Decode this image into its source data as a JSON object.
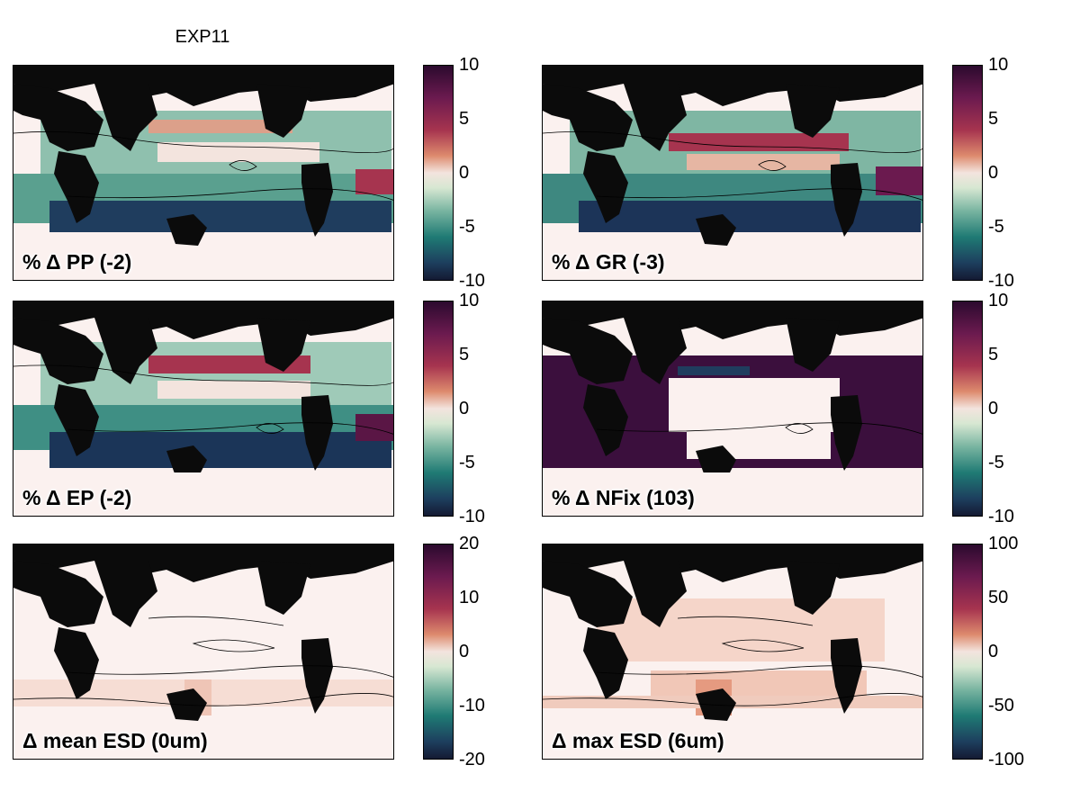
{
  "figure": {
    "title": "EXP11"
  },
  "panels": [
    {
      "label": "% Δ PP (-2)",
      "ticks": [
        "10",
        "5",
        "0",
        "-5",
        "-10"
      ]
    },
    {
      "label": "% Δ GR (-3)",
      "ticks": [
        "10",
        "5",
        "0",
        "-5",
        "-10"
      ]
    },
    {
      "label": "% Δ EP (-2)",
      "ticks": [
        "10",
        "5",
        "0",
        "-5",
        "-10"
      ]
    },
    {
      "label": "% Δ NFix (103)",
      "ticks": [
        "10",
        "5",
        "0",
        "-5",
        "-10"
      ]
    },
    {
      "label": "Δ mean ESD (0um)",
      "ticks": [
        "20",
        "10",
        "0",
        "-10",
        "-20"
      ]
    },
    {
      "label": "Δ max ESD (6um)",
      "ticks": [
        "100",
        "50",
        "0",
        "-50",
        "-100"
      ]
    }
  ],
  "colors": {
    "land": "#0b0b0b",
    "colormap_max": "#2b0a2e",
    "colormap_mid": "#f3e4de",
    "colormap_min": "#141a33"
  }
}
